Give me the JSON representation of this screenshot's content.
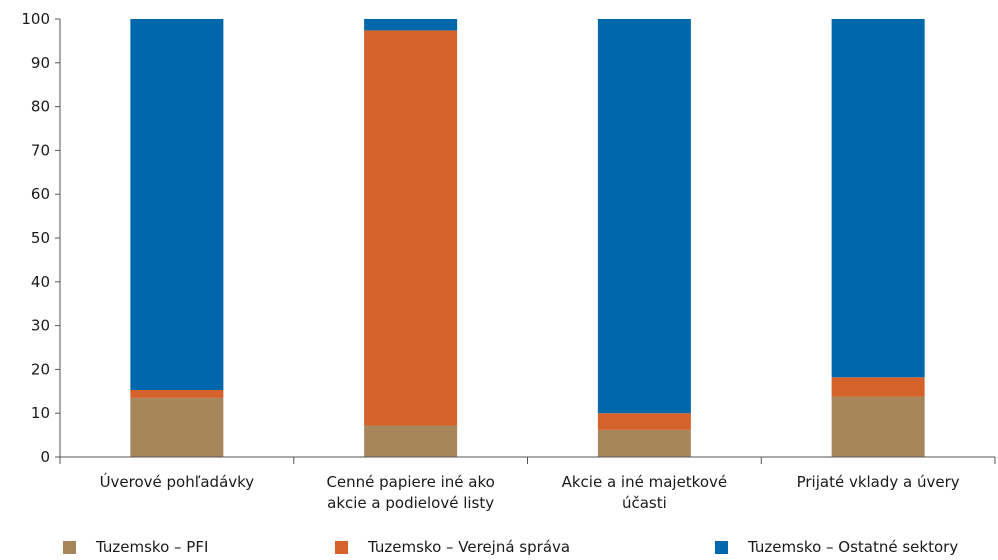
{
  "chart_data": {
    "type": "bar",
    "stacked": true,
    "title": "",
    "xlabel": "",
    "ylabel": "",
    "ylim": [
      0,
      100
    ],
    "yticks": [
      0,
      10,
      20,
      30,
      40,
      50,
      60,
      70,
      80,
      90,
      100
    ],
    "grid": false,
    "legend_position": "bottom",
    "categories": [
      [
        "Úverové pohľadávky"
      ],
      [
        "Cenné  papiere iné ako",
        "akcie a podielové listy"
      ],
      [
        "Akcie a iné majetkové",
        "účasti"
      ],
      [
        "Prijaté vklady a úvery"
      ]
    ],
    "series": [
      {
        "name": "Tuzemsko – PFI",
        "color": "#a8865c",
        "values": [
          13.5,
          7.2,
          6.2,
          13.8
        ]
      },
      {
        "name": "Tuzemsko – Verejná správa",
        "color": "#d4622a",
        "values": [
          1.8,
          90.2,
          3.8,
          4.4
        ]
      },
      {
        "name": "Tuzemsko – Ostatné sektory",
        "color": "#0067ac",
        "values": [
          84.7,
          2.6,
          90.0,
          81.8
        ]
      }
    ]
  }
}
